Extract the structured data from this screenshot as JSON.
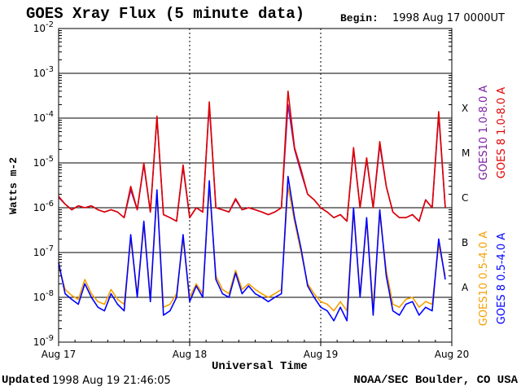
{
  "header": {
    "title": "GOES Xray Flux (5 minute data)",
    "begin_label": "Begin:",
    "begin_value": "1998 Aug 17 0000UT"
  },
  "footer": {
    "updated_label": "Updated",
    "updated_value": "1998 Aug 19 21:46:05",
    "source": "NOAA/SEC Boulder, CO USA"
  },
  "colors": {
    "goes10_long": "#7b1fa2",
    "goes8_long": "#e00000",
    "goes10_short": "#f5a000",
    "goes8_short": "#0000ff"
  },
  "chart_data": {
    "type": "line",
    "title": "GOES Xray Flux (5 minute data)",
    "xlabel": "Universal Time",
    "ylabel": "Watts m-2",
    "yscale": "log",
    "ylim": [
      1e-09,
      0.01
    ],
    "xlim": [
      0,
      3
    ],
    "x_unit": "days since Aug 17 00:00 UT",
    "x_ticks": [
      "Aug 17",
      "Aug 18",
      "Aug 19",
      "Aug 20"
    ],
    "y_ticks": [
      "10-9",
      "10-8",
      "10-7",
      "10-6",
      "10-5",
      "10-4",
      "10-3",
      "10-2"
    ],
    "flare_classes": [
      "A",
      "B",
      "C",
      "M",
      "X"
    ],
    "grid": true,
    "legend_placement": "right",
    "series": [
      {
        "name": "GOES10 1.0-8.0 A",
        "color": "#7b1fa2",
        "x": [
          0,
          0.05,
          0.1,
          0.15,
          0.2,
          0.25,
          0.3,
          0.35,
          0.4,
          0.45,
          0.5,
          0.55,
          0.6,
          0.65,
          0.7,
          0.75,
          0.8,
          0.85,
          0.9,
          0.95,
          1.0,
          1.05,
          1.1,
          1.15,
          1.2,
          1.25,
          1.3,
          1.35,
          1.4,
          1.45,
          1.5,
          1.55,
          1.6,
          1.65,
          1.7,
          1.75,
          1.8,
          1.85,
          1.9,
          1.95,
          2.0,
          2.05,
          2.1,
          2.15,
          2.2,
          2.25,
          2.3,
          2.35,
          2.4,
          2.45,
          2.5,
          2.55,
          2.6,
          2.65,
          2.7,
          2.75,
          2.8,
          2.85,
          2.9,
          2.95
        ],
        "y": [
          1.7e-06,
          1.2e-06,
          9e-07,
          1.1e-06,
          1e-06,
          1.1e-06,
          9e-07,
          8e-07,
          9e-07,
          8e-07,
          6e-07,
          2.5e-06,
          9e-07,
          9e-06,
          8e-07,
          0.0001,
          7e-07,
          6e-07,
          5e-07,
          8e-06,
          6e-07,
          1e-06,
          8e-07,
          0.0002,
          1e-06,
          9e-07,
          8e-07,
          1.5e-06,
          9e-07,
          1e-06,
          9e-07,
          8e-07,
          7e-07,
          8e-07,
          1e-06,
          0.0002,
          2e-05,
          6e-06,
          2e-06,
          1.5e-06,
          1e-06,
          8e-07,
          6e-07,
          7e-07,
          5e-07,
          2e-05,
          1e-06,
          1.2e-05,
          1e-06,
          2.5e-05,
          3e-06,
          8e-07,
          6e-07,
          6e-07,
          7e-07,
          5e-07,
          1.5e-06,
          1e-06,
          0.00012,
          1e-06
        ]
      },
      {
        "name": "GOES 8 1.0-8.0 A",
        "color": "#e00000",
        "x": [
          0,
          0.05,
          0.1,
          0.15,
          0.2,
          0.25,
          0.3,
          0.35,
          0.4,
          0.45,
          0.5,
          0.55,
          0.6,
          0.65,
          0.7,
          0.75,
          0.8,
          0.85,
          0.9,
          0.95,
          1.0,
          1.05,
          1.1,
          1.15,
          1.2,
          1.25,
          1.3,
          1.35,
          1.4,
          1.45,
          1.5,
          1.55,
          1.6,
          1.65,
          1.7,
          1.75,
          1.8,
          1.85,
          1.9,
          1.95,
          2.0,
          2.05,
          2.1,
          2.15,
          2.2,
          2.25,
          2.3,
          2.35,
          2.4,
          2.45,
          2.5,
          2.55,
          2.6,
          2.65,
          2.7,
          2.75,
          2.8,
          2.85,
          2.9,
          2.95
        ],
        "y": [
          1.8e-06,
          1.2e-06,
          9e-07,
          1.1e-06,
          1e-06,
          1.1e-06,
          9e-07,
          8e-07,
          9e-07,
          8e-07,
          6e-07,
          3e-06,
          9e-07,
          1e-05,
          8e-07,
          0.00011,
          7e-07,
          6e-07,
          5e-07,
          9e-06,
          6e-07,
          1e-06,
          8e-07,
          0.00023,
          1e-06,
          9e-07,
          8e-07,
          1.6e-06,
          9e-07,
          1e-06,
          9e-07,
          8e-07,
          7e-07,
          8e-07,
          1e-06,
          0.0004,
          2.2e-05,
          7e-06,
          2e-06,
          1.5e-06,
          1e-06,
          8e-07,
          6e-07,
          7e-07,
          5e-07,
          2.2e-05,
          1e-06,
          1.3e-05,
          1e-06,
          3e-05,
          3e-06,
          8e-07,
          6e-07,
          6e-07,
          7e-07,
          5e-07,
          1.5e-06,
          1e-06,
          0.00014,
          1e-06
        ]
      },
      {
        "name": "GOES10 0.5-4.0 A",
        "color": "#f5a000",
        "x": [
          0,
          0.05,
          0.1,
          0.15,
          0.2,
          0.25,
          0.3,
          0.35,
          0.4,
          0.45,
          0.5,
          0.55,
          0.6,
          0.65,
          0.7,
          0.75,
          0.8,
          0.85,
          0.9,
          0.95,
          1.0,
          1.05,
          1.1,
          1.15,
          1.2,
          1.25,
          1.3,
          1.35,
          1.4,
          1.45,
          1.5,
          1.55,
          1.6,
          1.65,
          1.7,
          1.75,
          1.8,
          1.85,
          1.9,
          1.95,
          2.0,
          2.05,
          2.1,
          2.15,
          2.2,
          2.25,
          2.3,
          2.35,
          2.4,
          2.45,
          2.5,
          2.55,
          2.6,
          2.65,
          2.7,
          2.75,
          2.8,
          2.85,
          2.9,
          2.95
        ],
        "y": [
          5e-08,
          1.5e-08,
          1.1e-08,
          9e-09,
          2.5e-08,
          1.2e-08,
          8e-09,
          7e-09,
          1.5e-08,
          9e-09,
          7e-09,
          2e-07,
          1.2e-08,
          4e-07,
          1e-08,
          2e-06,
          6e-09,
          7e-09,
          1.2e-08,
          2e-07,
          1e-08,
          2e-08,
          1.2e-08,
          3e-06,
          3e-08,
          1.5e-08,
          1.2e-08,
          4e-08,
          1.5e-08,
          2e-08,
          1.5e-08,
          1.2e-08,
          1e-08,
          1.2e-08,
          1.5e-08,
          3e-06,
          5e-07,
          1e-07,
          2e-08,
          1.2e-08,
          8e-09,
          7e-09,
          5e-09,
          8e-09,
          5e-09,
          8e-07,
          1.2e-08,
          5e-07,
          6e-09,
          7e-07,
          4e-08,
          7e-09,
          6e-09,
          9e-09,
          1e-08,
          6e-09,
          8e-09,
          7e-09,
          1.5e-07,
          3e-08
        ]
      },
      {
        "name": "GOES 8 0.5-4.0 A",
        "color": "#0000ff",
        "x": [
          0,
          0.05,
          0.1,
          0.15,
          0.2,
          0.25,
          0.3,
          0.35,
          0.4,
          0.45,
          0.5,
          0.55,
          0.6,
          0.65,
          0.7,
          0.75,
          0.8,
          0.85,
          0.9,
          0.95,
          1.0,
          1.05,
          1.1,
          1.15,
          1.2,
          1.25,
          1.3,
          1.35,
          1.4,
          1.45,
          1.5,
          1.55,
          1.6,
          1.65,
          1.7,
          1.75,
          1.8,
          1.85,
          1.9,
          1.95,
          2.0,
          2.05,
          2.1,
          2.15,
          2.2,
          2.25,
          2.3,
          2.35,
          2.4,
          2.45,
          2.5,
          2.55,
          2.6,
          2.65,
          2.7,
          2.75,
          2.8,
          2.85,
          2.9,
          2.95
        ],
        "y": [
          6e-08,
          1.2e-08,
          9e-09,
          7e-09,
          2e-08,
          1e-08,
          6e-09,
          5e-09,
          1.2e-08,
          7e-09,
          5e-09,
          2.5e-07,
          1e-08,
          5e-07,
          8e-09,
          2.5e-06,
          4e-09,
          5e-09,
          1e-08,
          2.5e-07,
          8e-09,
          1.8e-08,
          1e-08,
          4e-06,
          2.5e-08,
          1.2e-08,
          1e-08,
          3.5e-08,
          1.2e-08,
          1.8e-08,
          1.2e-08,
          1e-08,
          8e-09,
          1e-08,
          1.2e-08,
          5e-06,
          6e-07,
          1.2e-07,
          1.8e-08,
          1e-08,
          6e-09,
          5e-09,
          3e-09,
          6e-09,
          3e-09,
          1e-06,
          1e-08,
          6e-07,
          4e-09,
          9e-07,
          3e-08,
          5e-09,
          4e-09,
          7e-09,
          8e-09,
          4e-09,
          6e-09,
          5e-09,
          2e-07,
          2.5e-08
        ]
      }
    ]
  }
}
